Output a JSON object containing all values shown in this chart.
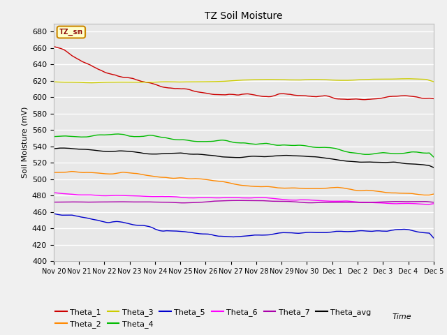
{
  "title": "TZ Soil Moisture",
  "xlabel": "Time",
  "ylabel": "Soil Moisture (mV)",
  "ylim": [
    400,
    690
  ],
  "yticks": [
    400,
    420,
    440,
    460,
    480,
    500,
    520,
    540,
    560,
    580,
    600,
    620,
    640,
    660,
    680
  ],
  "legend_label": "TZ_sm",
  "series_order": [
    "Theta_1",
    "Theta_2",
    "Theta_3",
    "Theta_4",
    "Theta_5",
    "Theta_6",
    "Theta_7",
    "Theta_avg"
  ],
  "colors": {
    "Theta_1": "#cc0000",
    "Theta_2": "#ff8800",
    "Theta_3": "#cccc00",
    "Theta_4": "#00bb00",
    "Theta_5": "#0000cc",
    "Theta_6": "#ff00ff",
    "Theta_7": "#aa00aa",
    "Theta_avg": "#000000"
  },
  "n_points": 360,
  "x_tick_labels": [
    "Nov 20",
    "Nov 21",
    "Nov 22",
    "Nov 23",
    "Nov 24",
    "Nov 25",
    "Nov 26",
    "Nov 27",
    "Nov 28",
    "Nov 29",
    "Nov 30",
    "Dec 1",
    "Dec 2",
    "Dec 3",
    "Dec 4",
    "Dec 5"
  ],
  "background_color": "#e8e8e8",
  "fig_background": "#f0f0f0",
  "grid_color": "#ffffff"
}
